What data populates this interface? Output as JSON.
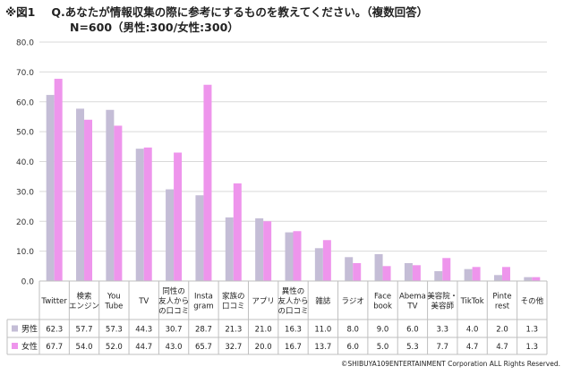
{
  "header": {
    "figure_label": "※図1",
    "question": "Q.あなたが情報収集の際に参考にするものを教えてください。（複数回答）",
    "sample": "N=600（男性:300/女性:300）"
  },
  "colors": {
    "male": "#c4bdd6",
    "female": "#ee95ec",
    "grid": "#d9d9d9",
    "table_border": "#bfbfbf"
  },
  "chart_data": {
    "type": "bar",
    "title": "Q.あなたが情報収集の際に参考にするものを教えてください。（複数回答）",
    "xlabel": "",
    "ylabel": "",
    "ylim": [
      0,
      80
    ],
    "yticks": [
      "0.0",
      "10.0",
      "20.0",
      "30.0",
      "40.0",
      "50.0",
      "60.0",
      "70.0",
      "80.0"
    ],
    "categories": [
      [
        "Twitter"
      ],
      [
        "検索",
        "エンジン"
      ],
      [
        "You",
        "Tube"
      ],
      [
        "TV"
      ],
      [
        "同性の",
        "友人から",
        "の口コミ"
      ],
      [
        "Insta",
        "gram"
      ],
      [
        "家族の",
        "口コミ"
      ],
      [
        "アプリ"
      ],
      [
        "異性の",
        "友人から",
        "の口コミ"
      ],
      [
        "雑誌"
      ],
      [
        "ラジオ"
      ],
      [
        "Face",
        "book"
      ],
      [
        "Abema",
        "TV"
      ],
      [
        "美容院・",
        "美容師"
      ],
      [
        "TikTok"
      ],
      [
        "Pinte",
        "rest"
      ],
      [
        "その他"
      ]
    ],
    "series": [
      {
        "name": "男性",
        "values": [
          62.3,
          57.7,
          57.3,
          44.3,
          30.7,
          28.7,
          21.3,
          21.0,
          16.3,
          11.0,
          8.0,
          9.0,
          6.0,
          3.3,
          4.0,
          2.0,
          1.3
        ]
      },
      {
        "name": "女性",
        "values": [
          67.7,
          54.0,
          52.0,
          44.7,
          43.0,
          65.7,
          32.7,
          20.0,
          16.7,
          13.7,
          6.0,
          5.0,
          5.3,
          7.7,
          4.7,
          4.7,
          1.3
        ]
      }
    ],
    "value_labels": [
      [
        "62.3",
        "57.7",
        "57.3",
        "44.3",
        "30.7",
        "28.7",
        "21.3",
        "21.0",
        "16.3",
        "11.0",
        "8.0",
        "9.0",
        "6.0",
        "3.3",
        "4.0",
        "2.0",
        "1.3"
      ],
      [
        "67.7",
        "54.0",
        "52.0",
        "44.7",
        "43.0",
        "65.7",
        "32.7",
        "20.0",
        "16.7",
        "13.7",
        "6.0",
        "5.0",
        "5.3",
        "7.7",
        "4.7",
        "4.7",
        "1.3"
      ]
    ],
    "legend_placement": "data-table-rows",
    "grid": true
  },
  "footer": {
    "copyright": "©SHIBUYA109ENTERTAINMENT Corporation  ALL Rights Reserved."
  }
}
